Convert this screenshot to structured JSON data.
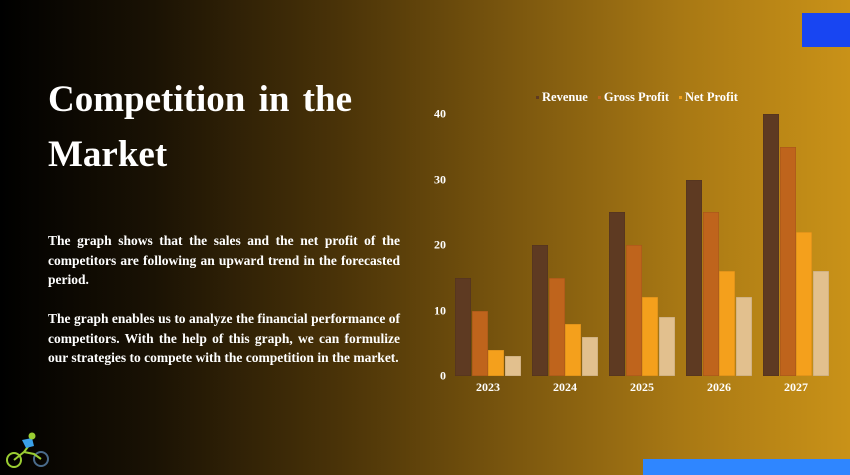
{
  "slide": {
    "title": "Competition in the Market",
    "paragraphs": [
      "The graph shows that the sales and the net profit of the competitors are following an upward trend in the forecasted period.",
      "The graph enables us to analyze the financial performance of competitors. With the help of this graph, we can formulize our strategies to compete with the competition in the market."
    ],
    "logo_icon": "cyclist-mountain-bike-icon",
    "accent_colors": {
      "top_right_block": "#1845f2",
      "bottom_right_block": "#2f86ff"
    }
  },
  "chart_data": {
    "type": "bar",
    "title": "",
    "xlabel": "",
    "ylabel": "",
    "categories": [
      "2023",
      "2024",
      "2025",
      "2026",
      "2027"
    ],
    "series": [
      {
        "name": "Revenue",
        "color": "#5e3a22",
        "values": [
          15,
          20,
          25,
          30,
          40
        ]
      },
      {
        "name": "Gross Profit",
        "color": "#bf641c",
        "values": [
          10,
          15,
          20,
          25,
          35
        ]
      },
      {
        "name": "Net Profit",
        "color": "#f4a01c",
        "values": [
          4,
          8,
          12,
          16,
          22
        ]
      },
      {
        "name": "",
        "color": "#e2c08e",
        "values": [
          3,
          6,
          9,
          12,
          16
        ]
      }
    ],
    "legend": [
      "Revenue",
      "Gross Profit",
      "Net Profit"
    ],
    "legend_position": "top",
    "yticks": [
      0,
      10,
      20,
      30,
      40
    ],
    "ylim": [
      0,
      40
    ],
    "grid": false
  }
}
